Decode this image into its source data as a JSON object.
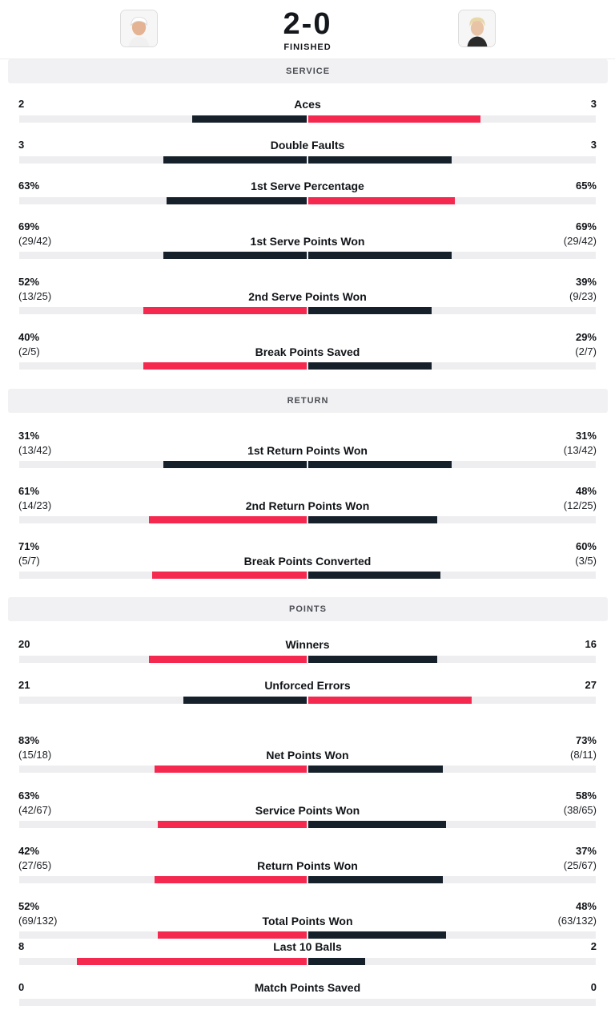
{
  "match": {
    "score": "2-0",
    "status": "FINISHED"
  },
  "colors": {
    "dark": "#16202a",
    "red": "#f5284f",
    "track": "#eeeef0"
  },
  "sections": [
    {
      "title": "SERVICE",
      "stats": [
        {
          "label": "Aces",
          "left": "2",
          "right": "3",
          "left_frac": 0.4,
          "right_frac": 0.6,
          "left_color": "dark",
          "right_color": "red"
        },
        {
          "label": "Double Faults",
          "left": "3",
          "right": "3",
          "left_frac": 0.5,
          "right_frac": 0.5,
          "left_color": "dark",
          "right_color": "dark"
        },
        {
          "label": "1st Serve Percentage",
          "left": "63%",
          "right": "65%",
          "left_frac": 0.49,
          "right_frac": 0.51,
          "left_color": "dark",
          "right_color": "red"
        },
        {
          "label": "1st Serve Points Won",
          "left": "69%",
          "left_sub": "(29/42)",
          "right": "69%",
          "right_sub": "(29/42)",
          "left_frac": 0.5,
          "right_frac": 0.5,
          "left_color": "dark",
          "right_color": "dark"
        },
        {
          "label": "2nd Serve Points Won",
          "left": "52%",
          "left_sub": "(13/25)",
          "right": "39%",
          "right_sub": "(9/23)",
          "left_frac": 0.57,
          "right_frac": 0.43,
          "left_color": "red",
          "right_color": "dark"
        },
        {
          "label": "Break Points Saved",
          "left": "40%",
          "left_sub": "(2/5)",
          "right": "29%",
          "right_sub": "(2/7)",
          "left_frac": 0.57,
          "right_frac": 0.43,
          "left_color": "red",
          "right_color": "dark"
        }
      ]
    },
    {
      "title": "RETURN",
      "stats": [
        {
          "label": "1st Return Points Won",
          "left": "31%",
          "left_sub": "(13/42)",
          "right": "31%",
          "right_sub": "(13/42)",
          "left_frac": 0.5,
          "right_frac": 0.5,
          "left_color": "dark",
          "right_color": "dark"
        },
        {
          "label": "2nd Return Points Won",
          "left": "61%",
          "left_sub": "(14/23)",
          "right": "48%",
          "right_sub": "(12/25)",
          "left_frac": 0.55,
          "right_frac": 0.45,
          "left_color": "red",
          "right_color": "dark"
        },
        {
          "label": "Break Points Converted",
          "left": "71%",
          "left_sub": "(5/7)",
          "right": "60%",
          "right_sub": "(3/5)",
          "left_frac": 0.54,
          "right_frac": 0.46,
          "left_color": "red",
          "right_color": "dark"
        }
      ]
    },
    {
      "title": "POINTS",
      "stats": [
        {
          "label": "Winners",
          "left": "20",
          "right": "16",
          "left_frac": 0.55,
          "right_frac": 0.45,
          "left_color": "red",
          "right_color": "dark"
        },
        {
          "label": "Unforced Errors",
          "left": "21",
          "right": "27",
          "left_frac": 0.43,
          "right_frac": 0.57,
          "left_color": "dark",
          "right_color": "red"
        },
        {
          "label": "Net Points Won",
          "left": "83%",
          "left_sub": "(15/18)",
          "right": "73%",
          "right_sub": "(8/11)",
          "left_frac": 0.53,
          "right_frac": 0.47,
          "left_color": "red",
          "right_color": "dark"
        },
        {
          "label": "Service Points Won",
          "left": "63%",
          "left_sub": "(42/67)",
          "right": "58%",
          "right_sub": "(38/65)",
          "left_frac": 0.52,
          "right_frac": 0.48,
          "left_color": "red",
          "right_color": "dark"
        },
        {
          "label": "Return Points Won",
          "left": "42%",
          "left_sub": "(27/65)",
          "right": "37%",
          "right_sub": "(25/67)",
          "left_frac": 0.53,
          "right_frac": 0.47,
          "left_color": "red",
          "right_color": "dark"
        },
        {
          "label": "Total Points Won",
          "left": "52%",
          "left_sub": "(69/132)",
          "right": "48%",
          "right_sub": "(63/132)",
          "left_frac": 0.52,
          "right_frac": 0.48,
          "left_color": "red",
          "right_color": "dark"
        },
        {
          "label": "Last 10 Balls",
          "left": "8",
          "right": "2",
          "left_frac": 0.8,
          "right_frac": 0.2,
          "left_color": "red",
          "right_color": "dark"
        },
        {
          "label": "Match Points Saved",
          "left": "0",
          "right": "0",
          "left_frac": 0,
          "right_frac": 0,
          "left_color": "dark",
          "right_color": "dark"
        }
      ]
    }
  ]
}
